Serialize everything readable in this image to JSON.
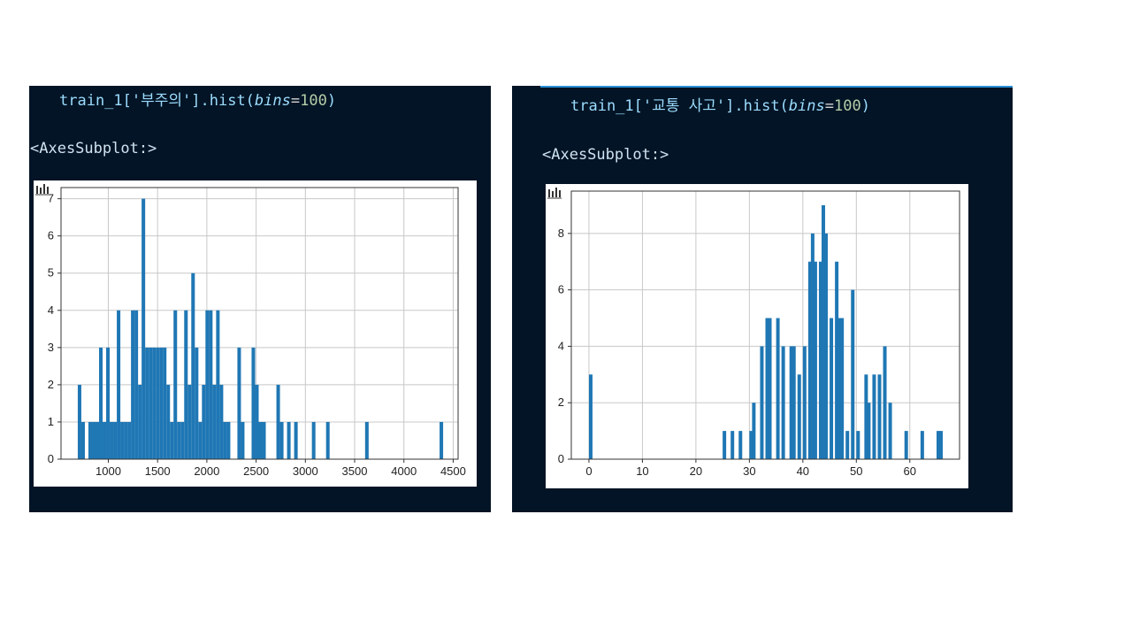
{
  "panels": [
    {
      "code": {
        "prefix": "train_1['부주의'].hist(",
        "kw": "bins",
        "eq": "=",
        "num": "100",
        "suffix": ")"
      },
      "output": "<AxesSubplot:>"
    },
    {
      "code": {
        "prefix": "train_1['교통 사고'].hist(",
        "kw": "bins",
        "eq": "=",
        "num": "100",
        "suffix": ")"
      },
      "output": "<AxesSubplot:>"
    }
  ],
  "colors": {
    "bar": "#1f77b4",
    "grid": "#c8c8c8",
    "panel": "#021425"
  },
  "chart_data": [
    {
      "type": "bar",
      "title": "",
      "xlabel": "",
      "ylabel": "",
      "xlim": [
        520,
        4550
      ],
      "ylim": [
        0,
        7.3
      ],
      "grid": true,
      "bin_width": 36,
      "xticks": [
        1000,
        1500,
        2000,
        2500,
        3000,
        3500,
        4000,
        4500
      ],
      "yticks": [
        0,
        1,
        2,
        3,
        4,
        5,
        6,
        7
      ],
      "bins": [
        {
          "x": 690,
          "count": 2
        },
        {
          "x": 726,
          "count": 1
        },
        {
          "x": 798,
          "count": 1
        },
        {
          "x": 834,
          "count": 1
        },
        {
          "x": 870,
          "count": 1
        },
        {
          "x": 906,
          "count": 3
        },
        {
          "x": 942,
          "count": 1
        },
        {
          "x": 978,
          "count": 3
        },
        {
          "x": 1014,
          "count": 1
        },
        {
          "x": 1050,
          "count": 1
        },
        {
          "x": 1086,
          "count": 4
        },
        {
          "x": 1122,
          "count": 1
        },
        {
          "x": 1158,
          "count": 1
        },
        {
          "x": 1194,
          "count": 1
        },
        {
          "x": 1230,
          "count": 4
        },
        {
          "x": 1266,
          "count": 4
        },
        {
          "x": 1302,
          "count": 2
        },
        {
          "x": 1338,
          "count": 7
        },
        {
          "x": 1374,
          "count": 3
        },
        {
          "x": 1410,
          "count": 3
        },
        {
          "x": 1446,
          "count": 3
        },
        {
          "x": 1482,
          "count": 3
        },
        {
          "x": 1518,
          "count": 3
        },
        {
          "x": 1554,
          "count": 3
        },
        {
          "x": 1590,
          "count": 2
        },
        {
          "x": 1626,
          "count": 1
        },
        {
          "x": 1662,
          "count": 4
        },
        {
          "x": 1698,
          "count": 1
        },
        {
          "x": 1734,
          "count": 1
        },
        {
          "x": 1770,
          "count": 4
        },
        {
          "x": 1806,
          "count": 2
        },
        {
          "x": 1842,
          "count": 5
        },
        {
          "x": 1878,
          "count": 3
        },
        {
          "x": 1914,
          "count": 1
        },
        {
          "x": 1950,
          "count": 2
        },
        {
          "x": 1986,
          "count": 4
        },
        {
          "x": 2022,
          "count": 4
        },
        {
          "x": 2058,
          "count": 2
        },
        {
          "x": 2094,
          "count": 4
        },
        {
          "x": 2130,
          "count": 2
        },
        {
          "x": 2166,
          "count": 1
        },
        {
          "x": 2202,
          "count": 1
        },
        {
          "x": 2310,
          "count": 3
        },
        {
          "x": 2346,
          "count": 1
        },
        {
          "x": 2454,
          "count": 3
        },
        {
          "x": 2490,
          "count": 2
        },
        {
          "x": 2526,
          "count": 1
        },
        {
          "x": 2562,
          "count": 1
        },
        {
          "x": 2706,
          "count": 2
        },
        {
          "x": 2742,
          "count": 1
        },
        {
          "x": 2814,
          "count": 1
        },
        {
          "x": 2886,
          "count": 1
        },
        {
          "x": 3066,
          "count": 1
        },
        {
          "x": 3210,
          "count": 1
        },
        {
          "x": 3606,
          "count": 1
        },
        {
          "x": 4362,
          "count": 1
        }
      ]
    },
    {
      "type": "bar",
      "title": "",
      "xlabel": "",
      "ylabel": "",
      "xlim": [
        -3.3,
        69.3
      ],
      "ylim": [
        0,
        9.5
      ],
      "grid": true,
      "bin_width": 0.66,
      "xticks": [
        0,
        10,
        20,
        30,
        40,
        50,
        60
      ],
      "yticks": [
        0,
        2,
        4,
        6,
        8
      ],
      "bins": [
        {
          "x": 0,
          "count": 3
        },
        {
          "x": 25,
          "count": 1
        },
        {
          "x": 26.5,
          "count": 1
        },
        {
          "x": 28,
          "count": 1
        },
        {
          "x": 30,
          "count": 1
        },
        {
          "x": 30.5,
          "count": 2
        },
        {
          "x": 32,
          "count": 4
        },
        {
          "x": 33,
          "count": 5
        },
        {
          "x": 33.5,
          "count": 5
        },
        {
          "x": 35,
          "count": 5
        },
        {
          "x": 36,
          "count": 4
        },
        {
          "x": 37.5,
          "count": 4
        },
        {
          "x": 38,
          "count": 4
        },
        {
          "x": 39,
          "count": 3
        },
        {
          "x": 40,
          "count": 4
        },
        {
          "x": 41,
          "count": 7
        },
        {
          "x": 41.5,
          "count": 8
        },
        {
          "x": 42,
          "count": 7
        },
        {
          "x": 43,
          "count": 7
        },
        {
          "x": 43.5,
          "count": 9
        },
        {
          "x": 44,
          "count": 8
        },
        {
          "x": 45,
          "count": 5
        },
        {
          "x": 46,
          "count": 7
        },
        {
          "x": 46.5,
          "count": 5
        },
        {
          "x": 47,
          "count": 5
        },
        {
          "x": 48,
          "count": 1
        },
        {
          "x": 49,
          "count": 6
        },
        {
          "x": 50,
          "count": 1
        },
        {
          "x": 51.5,
          "count": 3
        },
        {
          "x": 52,
          "count": 2
        },
        {
          "x": 53,
          "count": 3
        },
        {
          "x": 54,
          "count": 3
        },
        {
          "x": 55,
          "count": 4
        },
        {
          "x": 56,
          "count": 2
        },
        {
          "x": 59,
          "count": 1
        },
        {
          "x": 62,
          "count": 1
        },
        {
          "x": 65,
          "count": 1
        },
        {
          "x": 65.5,
          "count": 1
        }
      ]
    }
  ]
}
